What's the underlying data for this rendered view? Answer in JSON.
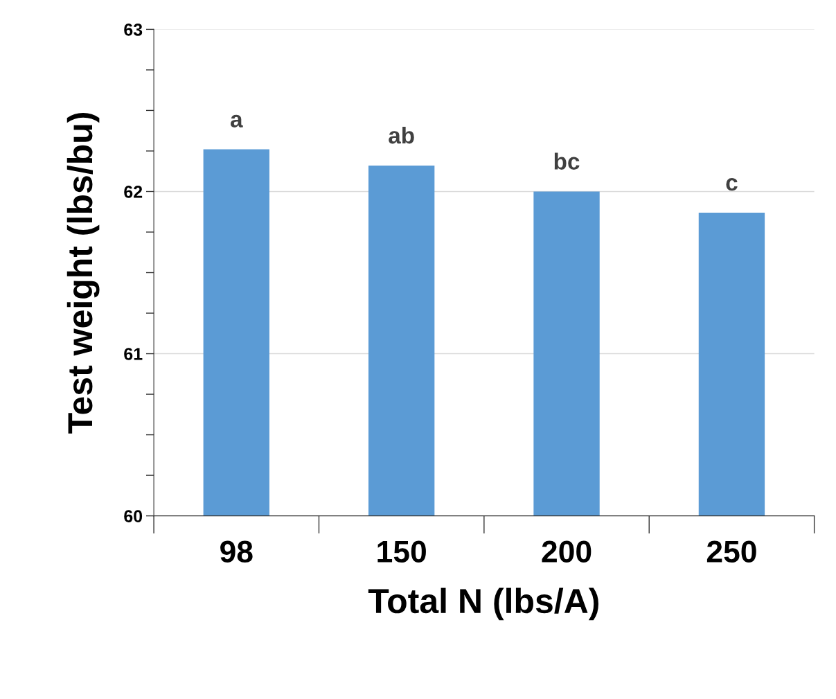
{
  "chart_data": {
    "type": "bar",
    "xlabel": "Total N (lbs/A)",
    "ylabel": "Test weight (lbs/bu)",
    "categories": [
      "98",
      "150",
      "200",
      "250"
    ],
    "values": [
      62.26,
      62.16,
      62.0,
      61.87
    ],
    "color": "#5b9bd5",
    "ylim": [
      60,
      63
    ],
    "yticks": [
      60,
      {
        "value": 60.25,
        "label": null
      },
      {
        "value": 60.5,
        "label": null
      },
      {
        "value": 60.75,
        "label": null
      },
      61,
      {
        "value": 61.25,
        "label": null
      },
      {
        "value": 61.5,
        "label": null
      },
      {
        "value": 61.75,
        "label": null
      },
      62,
      {
        "value": 62.25,
        "label": null
      },
      {
        "value": 62.5,
        "label": null
      },
      {
        "value": 62.75,
        "label": null
      },
      63
    ],
    "grid": "y",
    "annotations": [
      {
        "text": "a",
        "x": "98",
        "y": 62.26
      },
      {
        "text": "ab",
        "x": "150",
        "y": 62.16
      },
      {
        "text": "bc",
        "x": "200",
        "y": 62.0
      },
      {
        "text": "c",
        "x": "250",
        "y": 61.87
      }
    ]
  }
}
